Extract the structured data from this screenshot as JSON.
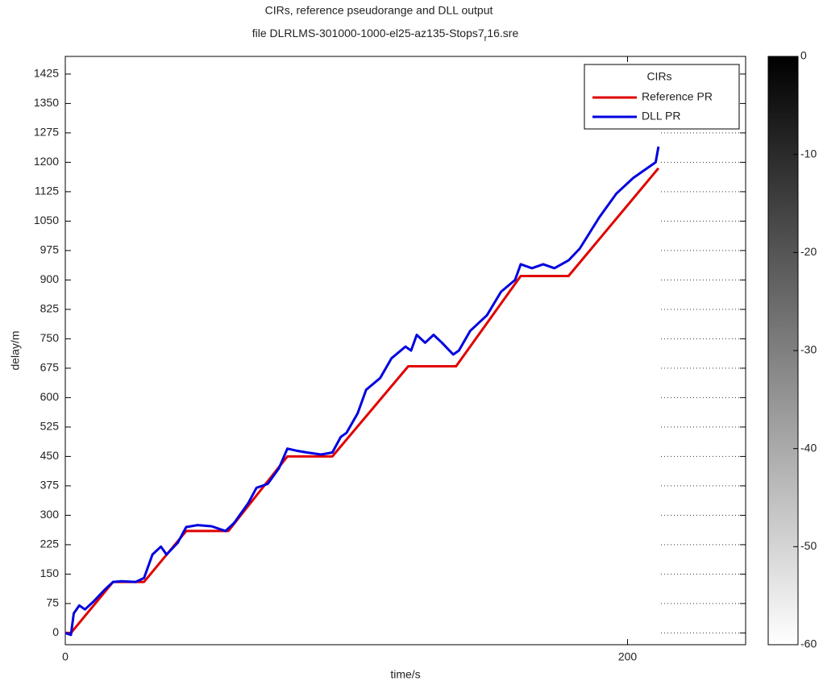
{
  "chart_data": {
    "type": "line",
    "title": "CIRs, reference pseudorange and DLL output",
    "subtitle": [
      "file DLRLMS-301000-1000-el25-az135-Stops7",
      "r",
      "16.sre"
    ],
    "x_label": "time/s",
    "y_label": "delay/m",
    "xlim": [
      0,
      242
    ],
    "xticks": [
      0,
      200
    ],
    "ylim": [
      -30,
      1470
    ],
    "yticks": [
      0,
      75,
      150,
      225,
      300,
      375,
      450,
      525,
      600,
      675,
      750,
      825,
      900,
      975,
      1050,
      1125,
      1200,
      1275,
      1350,
      1425
    ],
    "legend_title": "CIRs",
    "legend": "upper right",
    "series": [
      {
        "name": "Reference PR",
        "color": "#e00000",
        "x": [
          0,
          2,
          17,
          28,
          43,
          58,
          79,
          95,
          122,
          139,
          162,
          179,
          211
        ],
        "values": [
          0,
          0,
          130,
          130,
          260,
          260,
          450,
          450,
          680,
          680,
          910,
          910,
          1185
        ]
      },
      {
        "name": "DLL PR",
        "color": "#0000e0",
        "x": [
          0,
          2,
          3,
          5,
          7,
          10,
          14,
          17,
          20,
          25,
          28,
          31,
          34,
          36,
          40,
          43,
          47,
          52,
          57,
          60,
          65,
          68,
          72,
          76,
          79,
          82,
          86,
          91,
          95,
          98,
          100,
          104,
          107,
          112,
          116,
          121,
          123,
          125,
          128,
          131,
          134,
          138,
          140,
          144,
          150,
          155,
          160,
          162,
          166,
          170,
          174,
          179,
          183,
          190,
          196,
          202,
          206,
          210,
          211
        ],
        "values": [
          0,
          -5,
          50,
          70,
          60,
          80,
          110,
          130,
          132,
          130,
          140,
          200,
          220,
          200,
          230,
          270,
          275,
          272,
          260,
          280,
          330,
          370,
          380,
          420,
          470,
          465,
          460,
          455,
          460,
          500,
          510,
          560,
          620,
          650,
          700,
          730,
          720,
          760,
          740,
          760,
          740,
          710,
          720,
          770,
          810,
          870,
          900,
          940,
          930,
          940,
          930,
          950,
          980,
          1060,
          1120,
          1160,
          1180,
          1200,
          1240
        ]
      }
    ],
    "colorbar": {
      "lim": [
        -60,
        0
      ],
      "ticks": [
        0,
        -10,
        -20,
        -30,
        -40,
        -50,
        -60
      ]
    }
  }
}
